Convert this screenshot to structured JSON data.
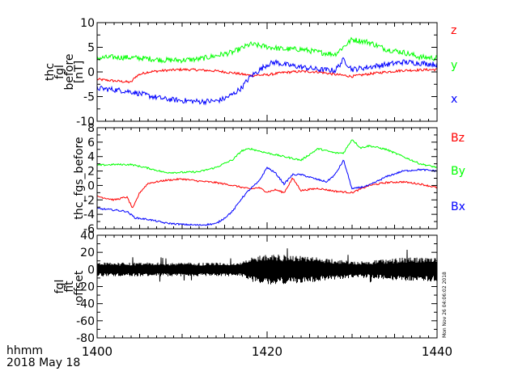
{
  "x_axis": {
    "ticks": [
      "1400",
      "1420",
      "1440"
    ],
    "label_line1": "hhmm",
    "label_line2": "2018 May 18",
    "range_minutes": [
      0,
      40
    ]
  },
  "timestamp_text": "Mon Nov 26 04:06:02 2018",
  "chart_data": [
    {
      "type": "line",
      "panel": "fgl_before",
      "ylabel": [
        "thc",
        "fgl",
        "before",
        "[nT]"
      ],
      "ylim": [
        -10,
        10
      ],
      "yticks": [
        "10",
        "5",
        "0",
        "-5",
        "-10"
      ],
      "ytick_values": [
        10,
        5,
        0,
        -5,
        -10
      ],
      "x_units": "minutes after 1400 UT",
      "series": [
        {
          "name": "z",
          "color": "#ff0000",
          "noise": 0.25,
          "x": [
            0,
            2,
            4,
            4.5,
            5,
            6,
            8,
            10,
            12,
            14,
            16,
            18,
            20,
            22,
            24,
            26,
            28,
            30,
            32,
            34,
            36,
            38,
            40
          ],
          "y": [
            -1.5,
            -1.8,
            -2.1,
            -1.0,
            -0.5,
            0.0,
            0.3,
            0.5,
            0.4,
            0.2,
            -0.2,
            -0.7,
            -0.6,
            -0.1,
            0.1,
            0.0,
            -0.5,
            -0.9,
            -0.4,
            0.0,
            0.3,
            0.4,
            0.5
          ]
        },
        {
          "name": "y",
          "color": "#00ff00",
          "noise": 0.55,
          "x": [
            0,
            2,
            4,
            6,
            8,
            10,
            12,
            14,
            16,
            18,
            20,
            22,
            24,
            26,
            28,
            30,
            32,
            34,
            36,
            38,
            40
          ],
          "y": [
            2.8,
            3.0,
            2.9,
            2.7,
            2.4,
            2.4,
            2.6,
            3.3,
            4.0,
            5.6,
            5.1,
            4.6,
            4.6,
            4.0,
            3.6,
            6.6,
            6.0,
            4.6,
            4.0,
            3.0,
            2.8
          ]
        },
        {
          "name": "x",
          "color": "#0000ff",
          "noise": 0.55,
          "x": [
            0,
            2,
            4,
            6,
            8,
            10,
            12,
            14,
            15,
            16,
            17,
            18,
            20,
            21,
            22,
            24,
            26,
            28,
            29,
            30,
            32,
            34,
            36,
            38,
            40
          ],
          "y": [
            -3.3,
            -3.6,
            -4.0,
            -4.8,
            -5.5,
            -5.8,
            -6.0,
            -5.9,
            -5.4,
            -4.5,
            -3.2,
            -1.0,
            1.5,
            2.0,
            1.5,
            1.0,
            0.5,
            0.3,
            2.5,
            0.5,
            1.0,
            1.5,
            2.0,
            1.8,
            1.5
          ]
        }
      ],
      "legend": [
        "z",
        "y",
        "x"
      ]
    },
    {
      "type": "line",
      "panel": "thc_fgs_before",
      "ylabel": [
        "thc_fgs_before"
      ],
      "ylim": [
        -6,
        8
      ],
      "yticks": [
        "8",
        "6",
        "4",
        "2",
        "0",
        "-2",
        "-4",
        "-6"
      ],
      "ytick_values": [
        8,
        6,
        4,
        2,
        0,
        -2,
        -4,
        -6
      ],
      "x_units": "minutes after 1400 UT",
      "series": [
        {
          "name": "Bz",
          "color": "#ff0000",
          "noise": 0.12,
          "x": [
            0,
            2,
            3.5,
            4.2,
            5,
            6,
            8,
            10,
            12,
            14,
            16,
            18,
            19,
            20,
            21,
            22,
            23,
            24,
            26,
            28,
            30,
            32,
            34,
            36,
            38,
            40
          ],
          "y": [
            -1.5,
            -2.0,
            -1.6,
            -3.2,
            -1.0,
            0.3,
            0.7,
            0.9,
            0.6,
            0.4,
            0.0,
            -0.5,
            -0.3,
            -0.9,
            -0.6,
            -1.0,
            1.0,
            -0.7,
            -0.4,
            -0.8,
            -1.0,
            0.0,
            0.4,
            0.5,
            0.2,
            -0.3
          ]
        },
        {
          "name": "By",
          "color": "#00ff00",
          "noise": 0.12,
          "x": [
            0,
            2,
            4,
            6,
            8,
            10,
            12,
            14,
            16,
            17,
            18,
            20,
            22,
            24,
            26,
            28,
            29,
            30,
            31,
            32,
            34,
            36,
            38,
            40
          ],
          "y": [
            2.8,
            2.9,
            2.9,
            2.4,
            1.8,
            1.8,
            1.9,
            2.5,
            3.6,
            4.8,
            5.1,
            4.5,
            4.0,
            3.5,
            5.1,
            4.5,
            4.5,
            6.4,
            5.2,
            5.5,
            5.0,
            4.0,
            3.0,
            2.5
          ]
        },
        {
          "name": "Bx",
          "color": "#0000ff",
          "noise": 0.12,
          "x": [
            0,
            2,
            3.5,
            4.5,
            6,
            8,
            10,
            12,
            14,
            15,
            16,
            17,
            18,
            19,
            20,
            21,
            22,
            23,
            24,
            26,
            27,
            28,
            29,
            30,
            32,
            34,
            36,
            38,
            40
          ],
          "y": [
            -3.2,
            -3.4,
            -3.6,
            -4.5,
            -4.7,
            -5.2,
            -5.4,
            -5.5,
            -5.3,
            -4.5,
            -3.5,
            -1.8,
            -0.5,
            0.5,
            2.5,
            1.7,
            0.2,
            1.5,
            1.5,
            0.8,
            0.5,
            1.5,
            3.5,
            -0.5,
            0.0,
            1.2,
            2.0,
            2.2,
            2.0
          ]
        }
      ],
      "legend": [
        "Bz",
        "By",
        "Bx"
      ]
    },
    {
      "type": "line",
      "panel": "fgl_fit_offset",
      "ylabel": [
        "fgl",
        "fit",
        "offset"
      ],
      "ylim": [
        -80,
        40
      ],
      "yticks": [
        "40",
        "20",
        "0",
        "-20",
        "-40",
        "-60",
        "-80"
      ],
      "ytick_values": [
        40,
        20,
        0,
        -20,
        -40,
        -60,
        -80
      ],
      "x_units": "minutes after 1400 UT",
      "series": [
        {
          "name": "",
          "color": "#000000",
          "center": 0,
          "x": [
            0,
            5,
            10,
            15,
            17,
            18,
            20,
            22,
            24,
            25,
            26,
            28,
            30,
            32,
            34,
            36,
            38,
            40
          ],
          "amplitude": [
            8,
            8,
            8,
            8,
            8,
            14,
            18,
            17,
            16,
            15,
            14,
            12,
            10,
            10,
            12,
            14,
            14,
            14
          ]
        }
      ],
      "legend": []
    }
  ]
}
